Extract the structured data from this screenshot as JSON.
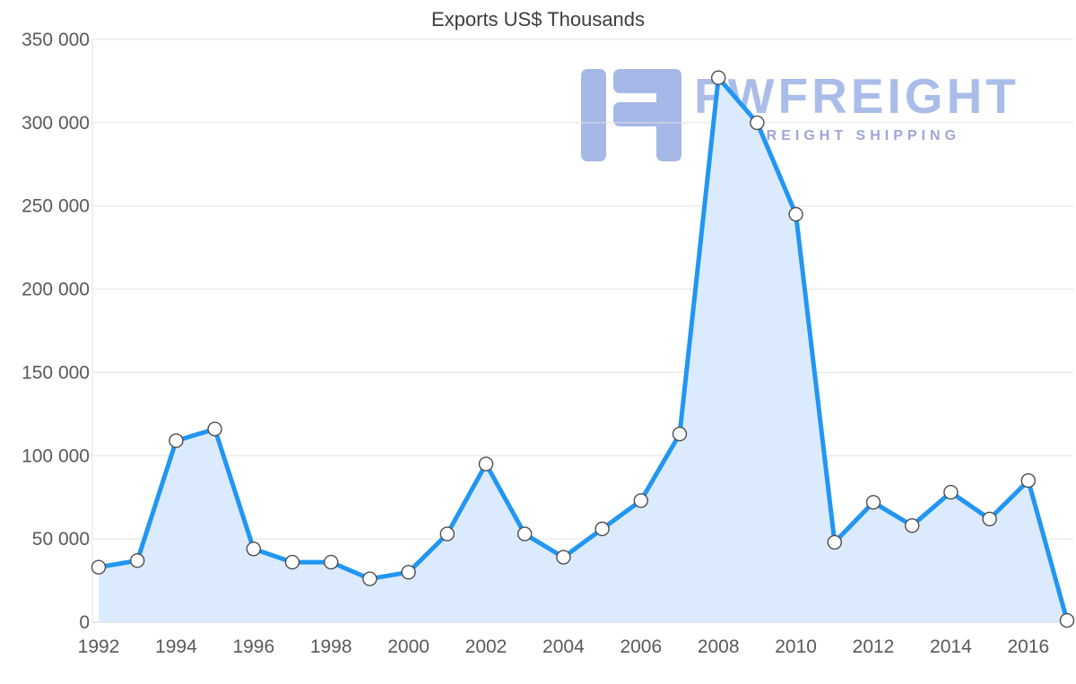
{
  "page": {
    "background": "#ffffff"
  },
  "chart_data": {
    "type": "area",
    "title": "Exports US$ Thousands",
    "x": [
      1992,
      1993,
      1994,
      1995,
      1996,
      1997,
      1998,
      1999,
      2000,
      2001,
      2002,
      2003,
      2004,
      2005,
      2006,
      2007,
      2008,
      2009,
      2010,
      2011,
      2012,
      2013,
      2014,
      2015,
      2016,
      2017
    ],
    "values": [
      33000,
      37000,
      109000,
      116000,
      44000,
      36000,
      36000,
      26000,
      30000,
      53000,
      95000,
      53000,
      39000,
      56000,
      73000,
      113000,
      327000,
      300000,
      245000,
      48000,
      72000,
      58000,
      78000,
      62000,
      85000,
      1000
    ],
    "xlabel": "",
    "ylabel": "",
    "ylim": [
      0,
      350000
    ],
    "yticks": [
      0,
      50000,
      100000,
      150000,
      200000,
      250000,
      300000,
      350000
    ],
    "ytick_labels": [
      "0",
      "50 000",
      "100 000",
      "150 000",
      "200 000",
      "250 000",
      "300 000",
      "350 000"
    ],
    "xticks": [
      1992,
      1994,
      1996,
      1998,
      2000,
      2002,
      2004,
      2006,
      2008,
      2010,
      2012,
      2014,
      2016
    ],
    "grid": true,
    "legend": "none",
    "marker": "circle",
    "colors": {
      "line": "#2196f3",
      "fill": "#dbeafc",
      "grid": "#e2e2e2",
      "axis": "#cfcfcf",
      "tick_text": "#595959",
      "title_text": "#3d3d3d",
      "marker_fill": "#ffffff",
      "marker_stroke": "#4d4d4d"
    }
  },
  "watermark": {
    "brand": "FWFREIGHT",
    "tagline": "FREIGHT SHIPPING",
    "colors": {
      "glyph": "#a6b8e8",
      "brand": "#aabde9",
      "tagline": "#9fa5d8"
    }
  }
}
